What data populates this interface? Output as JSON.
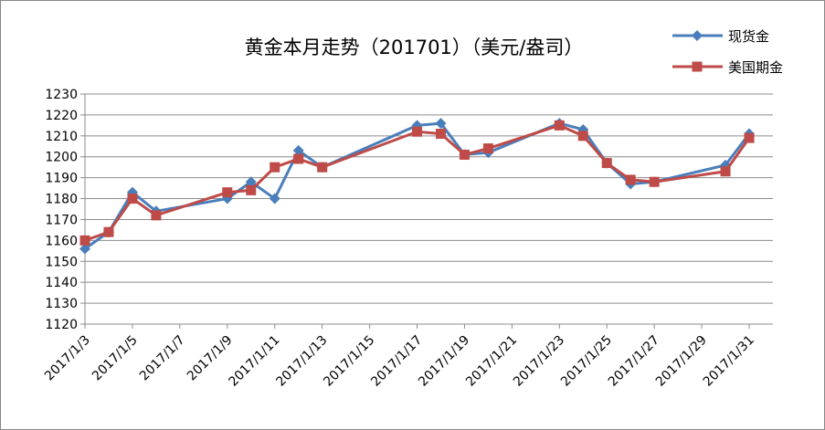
{
  "chart_data": {
    "type": "line",
    "title": "黄金本月走势（201701）（美元/盎司）",
    "xlabel": "",
    "ylabel": "",
    "x_ticks": [
      "2017/1/3",
      "2017/1/5",
      "2017/1/7",
      "2017/1/9",
      "2017/1/11",
      "2017/1/13",
      "2017/1/15",
      "2017/1/17",
      "2017/1/19",
      "2017/1/21",
      "2017/1/23",
      "2017/1/25",
      "2017/1/27",
      "2017/1/29",
      "2017/1/31"
    ],
    "xlim": [
      "2017/1/3",
      "2017/1/32"
    ],
    "ylim": [
      1120,
      1230
    ],
    "y_ticks": [
      1120,
      1130,
      1140,
      1150,
      1160,
      1170,
      1180,
      1190,
      1200,
      1210,
      1220,
      1230
    ],
    "grid": "horizontal",
    "legend": "top-right",
    "series": [
      {
        "name": "现货金",
        "color": "#4a7ebb",
        "marker": "diamond",
        "points": [
          [
            "2017/1/3",
            1156
          ],
          [
            "2017/1/4",
            1164
          ],
          [
            "2017/1/5",
            1183
          ],
          [
            "2017/1/6",
            1174
          ],
          [
            "2017/1/9",
            1180
          ],
          [
            "2017/1/10",
            1188
          ],
          [
            "2017/1/11",
            1180
          ],
          [
            "2017/1/12",
            1203
          ],
          [
            "2017/1/13",
            1195
          ],
          [
            "2017/1/17",
            1215
          ],
          [
            "2017/1/18",
            1216
          ],
          [
            "2017/1/19",
            1201
          ],
          [
            "2017/1/20",
            1202
          ],
          [
            "2017/1/23",
            1216
          ],
          [
            "2017/1/24",
            1213
          ],
          [
            "2017/1/25",
            1197
          ],
          [
            "2017/1/26",
            1187
          ],
          [
            "2017/1/27",
            1188
          ],
          [
            "2017/1/30",
            1196
          ],
          [
            "2017/1/31",
            1211
          ]
        ]
      },
      {
        "name": "美国期金",
        "color": "#be4b48",
        "marker": "square",
        "points": [
          [
            "2017/1/3",
            1160
          ],
          [
            "2017/1/4",
            1164
          ],
          [
            "2017/1/5",
            1180
          ],
          [
            "2017/1/6",
            1172
          ],
          [
            "2017/1/9",
            1183
          ],
          [
            "2017/1/10",
            1184
          ],
          [
            "2017/1/11",
            1195
          ],
          [
            "2017/1/12",
            1199
          ],
          [
            "2017/1/13",
            1195
          ],
          [
            "2017/1/17",
            1212
          ],
          [
            "2017/1/18",
            1211
          ],
          [
            "2017/1/19",
            1201
          ],
          [
            "2017/1/20",
            1204
          ],
          [
            "2017/1/23",
            1215
          ],
          [
            "2017/1/24",
            1210
          ],
          [
            "2017/1/25",
            1197
          ],
          [
            "2017/1/26",
            1189
          ],
          [
            "2017/1/27",
            1188
          ],
          [
            "2017/1/30",
            1193
          ],
          [
            "2017/1/31",
            1209
          ]
        ]
      }
    ]
  }
}
